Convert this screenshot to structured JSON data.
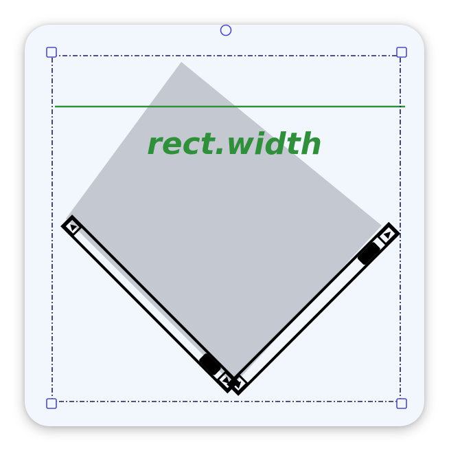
{
  "annotation": {
    "label": "rect.width",
    "color": "#2f8f3a"
  },
  "shape": {
    "fill": "#c4c9d1",
    "type": "rotated-square"
  },
  "selection": {
    "border_color": "#1a1a5a",
    "handle_color": "#4a4ac8"
  },
  "scrollbars": [
    {
      "name": "left-scrollbar",
      "orientation": "diagonal-down-right"
    },
    {
      "name": "right-scrollbar",
      "orientation": "diagonal-down-left"
    }
  ]
}
